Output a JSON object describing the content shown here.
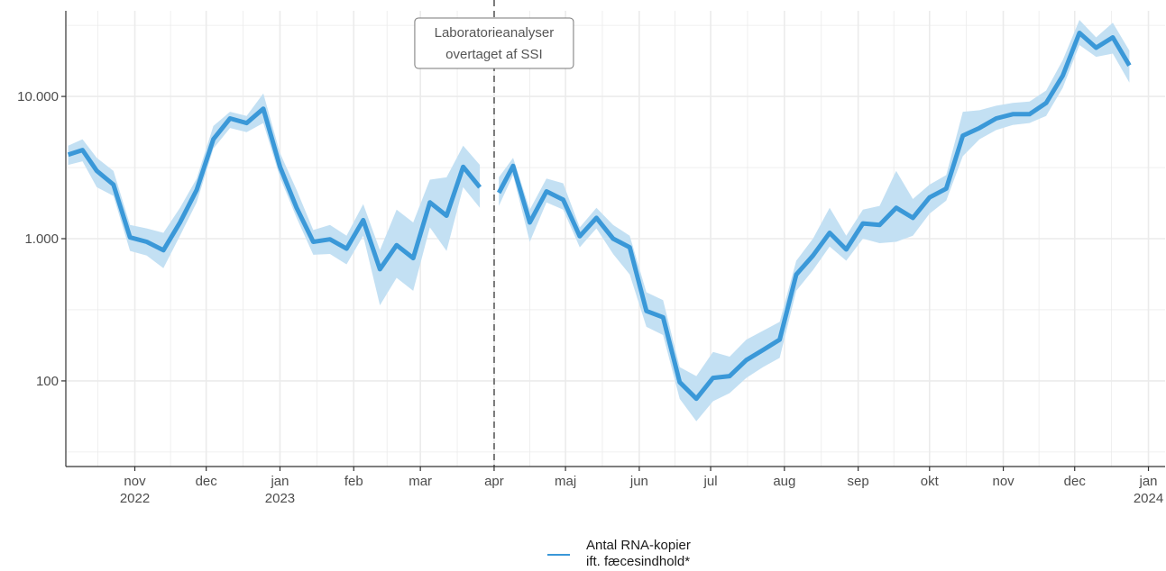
{
  "chart_data": {
    "type": "line",
    "y_scale": "log10",
    "ylim": [
      25,
      40000
    ],
    "xlim": [
      "2022-10-03",
      "2024-01-08"
    ],
    "grid": true,
    "legend_position": "bottom",
    "colors": {
      "line": "#3a98d8",
      "band": "#c3e0f3",
      "grid": "#ebebeb",
      "axis": "#333333",
      "vline": "#777777"
    },
    "y_ticks": [
      {
        "value": 100,
        "label": "100"
      },
      {
        "value": 1000,
        "label": "1.000"
      },
      {
        "value": 10000,
        "label": "10.000"
      }
    ],
    "x_ticks": [
      {
        "date": "2022-11-01",
        "label": "nov",
        "sublabel": "2022"
      },
      {
        "date": "2022-12-01",
        "label": "dec",
        "sublabel": ""
      },
      {
        "date": "2023-01-01",
        "label": "jan",
        "sublabel": "2023"
      },
      {
        "date": "2023-02-01",
        "label": "feb",
        "sublabel": ""
      },
      {
        "date": "2023-03-01",
        "label": "mar",
        "sublabel": ""
      },
      {
        "date": "2023-04-01",
        "label": "apr",
        "sublabel": ""
      },
      {
        "date": "2023-05-01",
        "label": "maj",
        "sublabel": ""
      },
      {
        "date": "2023-06-01",
        "label": "jun",
        "sublabel": ""
      },
      {
        "date": "2023-07-01",
        "label": "jul",
        "sublabel": ""
      },
      {
        "date": "2023-08-01",
        "label": "aug",
        "sublabel": ""
      },
      {
        "date": "2023-09-01",
        "label": "sep",
        "sublabel": ""
      },
      {
        "date": "2023-10-01",
        "label": "okt",
        "sublabel": ""
      },
      {
        "date": "2023-11-01",
        "label": "nov",
        "sublabel": ""
      },
      {
        "date": "2023-12-01",
        "label": "dec",
        "sublabel": ""
      },
      {
        "date": "2024-01-01",
        "label": "jan",
        "sublabel": "2024"
      }
    ],
    "annotation": {
      "date": "2023-04-01",
      "lines": [
        "Laboratorieanalyser",
        "overtaget af SSI"
      ]
    },
    "series": [
      {
        "name": "Antal RNA-kopier ift. fæcesindhold*",
        "segments": [
          [
            {
              "x": "2022-10-04",
              "y": 3900,
              "lo": 3300,
              "hi": 4500
            },
            {
              "x": "2022-10-10",
              "y": 4200,
              "lo": 3500,
              "hi": 5000
            },
            {
              "x": "2022-10-16",
              "y": 3000,
              "lo": 2300,
              "hi": 3700
            },
            {
              "x": "2022-10-23",
              "y": 2400,
              "lo": 2000,
              "hi": 3000
            },
            {
              "x": "2022-10-30",
              "y": 1020,
              "lo": 820,
              "hi": 1250
            },
            {
              "x": "2022-11-06",
              "y": 950,
              "lo": 760,
              "hi": 1180
            },
            {
              "x": "2022-11-13",
              "y": 830,
              "lo": 620,
              "hi": 1100
            },
            {
              "x": "2022-11-20",
              "y": 1300,
              "lo": 1050,
              "hi": 1650
            },
            {
              "x": "2022-11-27",
              "y": 2200,
              "lo": 1800,
              "hi": 2650
            },
            {
              "x": "2022-12-04",
              "y": 5000,
              "lo": 4300,
              "hi": 6200
            },
            {
              "x": "2022-12-11",
              "y": 7000,
              "lo": 6000,
              "hi": 7800
            },
            {
              "x": "2022-12-18",
              "y": 6500,
              "lo": 5600,
              "hi": 7300
            },
            {
              "x": "2022-12-25",
              "y": 8200,
              "lo": 6500,
              "hi": 10500
            },
            {
              "x": "2023-01-01",
              "y": 3200,
              "lo": 2700,
              "hi": 4000
            },
            {
              "x": "2023-01-08",
              "y": 1650,
              "lo": 1400,
              "hi": 2200
            },
            {
              "x": "2023-01-15",
              "y": 950,
              "lo": 770,
              "hi": 1150
            },
            {
              "x": "2023-01-22",
              "y": 990,
              "lo": 780,
              "hi": 1250
            },
            {
              "x": "2023-01-29",
              "y": 850,
              "lo": 660,
              "hi": 1050
            },
            {
              "x": "2023-02-05",
              "y": 1350,
              "lo": 1050,
              "hi": 1750
            },
            {
              "x": "2023-02-12",
              "y": 610,
              "lo": 340,
              "hi": 830
            },
            {
              "x": "2023-02-19",
              "y": 900,
              "lo": 530,
              "hi": 1600
            },
            {
              "x": "2023-02-26",
              "y": 730,
              "lo": 430,
              "hi": 1300
            },
            {
              "x": "2023-03-05",
              "y": 1800,
              "lo": 1200,
              "hi": 2600
            },
            {
              "x": "2023-03-12",
              "y": 1450,
              "lo": 820,
              "hi": 2700
            },
            {
              "x": "2023-03-19",
              "y": 3200,
              "lo": 2300,
              "hi": 4500
            },
            {
              "x": "2023-03-26",
              "y": 2300,
              "lo": 1650,
              "hi": 3300
            }
          ],
          [
            {
              "x": "2023-04-03",
              "y": 2100,
              "lo": 1700,
              "hi": 2700
            },
            {
              "x": "2023-04-09",
              "y": 3250,
              "lo": 2800,
              "hi": 3700
            },
            {
              "x": "2023-04-16",
              "y": 1300,
              "lo": 950,
              "hi": 1600
            },
            {
              "x": "2023-04-23",
              "y": 2150,
              "lo": 1800,
              "hi": 2650
            },
            {
              "x": "2023-04-30",
              "y": 1880,
              "lo": 1600,
              "hi": 2450
            },
            {
              "x": "2023-05-07",
              "y": 1040,
              "lo": 870,
              "hi": 1200
            },
            {
              "x": "2023-05-14",
              "y": 1400,
              "lo": 1180,
              "hi": 1650
            },
            {
              "x": "2023-05-21",
              "y": 1000,
              "lo": 780,
              "hi": 1250
            },
            {
              "x": "2023-05-28",
              "y": 870,
              "lo": 560,
              "hi": 1050
            },
            {
              "x": "2023-06-04",
              "y": 310,
              "lo": 240,
              "hi": 420
            },
            {
              "x": "2023-06-11",
              "y": 280,
              "lo": 210,
              "hi": 370
            },
            {
              "x": "2023-06-18",
              "y": 98,
              "lo": 75,
              "hi": 125
            },
            {
              "x": "2023-06-25",
              "y": 75,
              "lo": 52,
              "hi": 108
            },
            {
              "x": "2023-07-02",
              "y": 105,
              "lo": 72,
              "hi": 160
            },
            {
              "x": "2023-07-09",
              "y": 108,
              "lo": 82,
              "hi": 148
            },
            {
              "x": "2023-07-16",
              "y": 140,
              "lo": 105,
              "hi": 195
            },
            {
              "x": "2023-07-23",
              "y": 165,
              "lo": 125,
              "hi": 225
            },
            {
              "x": "2023-07-30",
              "y": 195,
              "lo": 145,
              "hi": 260
            },
            {
              "x": "2023-08-06",
              "y": 560,
              "lo": 430,
              "hi": 700
            },
            {
              "x": "2023-08-13",
              "y": 760,
              "lo": 600,
              "hi": 1000
            },
            {
              "x": "2023-08-20",
              "y": 1100,
              "lo": 880,
              "hi": 1650
            },
            {
              "x": "2023-08-27",
              "y": 840,
              "lo": 700,
              "hi": 1050
            },
            {
              "x": "2023-09-03",
              "y": 1280,
              "lo": 1000,
              "hi": 1600
            },
            {
              "x": "2023-09-10",
              "y": 1250,
              "lo": 930,
              "hi": 1700
            },
            {
              "x": "2023-09-17",
              "y": 1650,
              "lo": 950,
              "hi": 3000
            },
            {
              "x": "2023-09-24",
              "y": 1400,
              "lo": 1050,
              "hi": 1900
            },
            {
              "x": "2023-10-01",
              "y": 1950,
              "lo": 1500,
              "hi": 2400
            },
            {
              "x": "2023-10-08",
              "y": 2250,
              "lo": 1850,
              "hi": 2800
            },
            {
              "x": "2023-10-15",
              "y": 5300,
              "lo": 3800,
              "hi": 7800
            },
            {
              "x": "2023-10-22",
              "y": 6000,
              "lo": 5000,
              "hi": 8000
            },
            {
              "x": "2023-10-29",
              "y": 7000,
              "lo": 5800,
              "hi": 8600
            },
            {
              "x": "2023-11-05",
              "y": 7500,
              "lo": 6300,
              "hi": 9000
            },
            {
              "x": "2023-11-12",
              "y": 7500,
              "lo": 6500,
              "hi": 9200
            },
            {
              "x": "2023-11-19",
              "y": 9000,
              "lo": 7300,
              "hi": 11000
            },
            {
              "x": "2023-11-26",
              "y": 14000,
              "lo": 11500,
              "hi": 18000
            },
            {
              "x": "2023-12-03",
              "y": 28000,
              "lo": 23000,
              "hi": 34500
            },
            {
              "x": "2023-12-10",
              "y": 22000,
              "lo": 19000,
              "hi": 26000
            },
            {
              "x": "2023-12-17",
              "y": 26000,
              "lo": 20000,
              "hi": 33000
            },
            {
              "x": "2023-12-24",
              "y": 16500,
              "lo": 12500,
              "hi": 21000
            }
          ]
        ]
      }
    ]
  }
}
